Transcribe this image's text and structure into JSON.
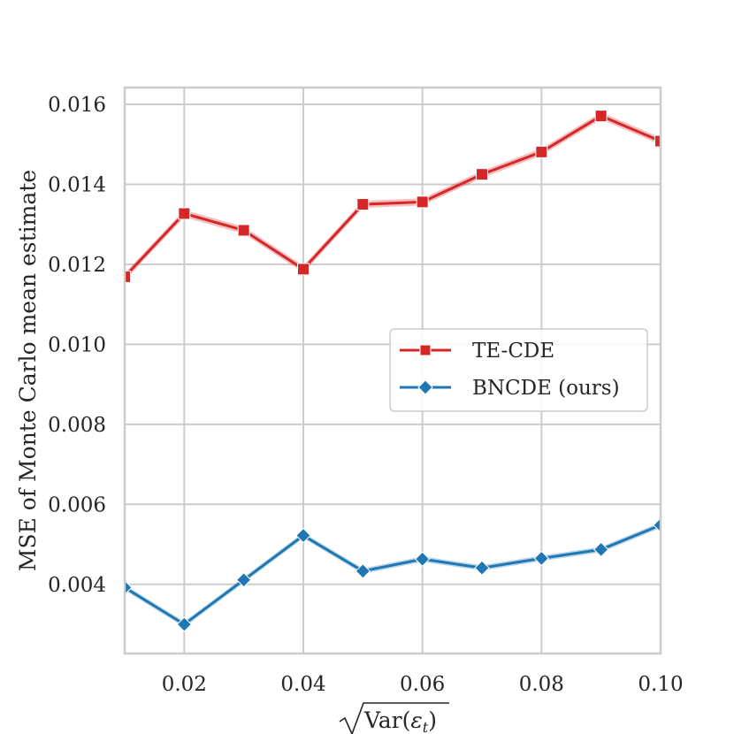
{
  "chart_data": {
    "type": "line",
    "title": "",
    "xlabel": "√Var(εt)",
    "ylabel": "MSE of Monte Carlo mean estimate",
    "xlim": [
      0.01,
      0.1
    ],
    "ylim": [
      0.00227,
      0.01642
    ],
    "grid": true,
    "legend_position": "center-right",
    "x_ticks": [
      0.02,
      0.04,
      0.06,
      0.08,
      0.1
    ],
    "x_tick_labels": [
      "0.02",
      "0.04",
      "0.06",
      "0.08",
      "0.10"
    ],
    "y_ticks": [
      0.004,
      0.006,
      0.008,
      0.01,
      0.012,
      0.014,
      0.016
    ],
    "y_tick_labels": [
      "0.004",
      "0.006",
      "0.008",
      "0.010",
      "0.012",
      "0.014",
      "0.016"
    ],
    "x": [
      0.01,
      0.02,
      0.03,
      0.04,
      0.05,
      0.06,
      0.07,
      0.08,
      0.09,
      0.1
    ],
    "series": [
      {
        "name": "TE-CDE",
        "color": "#d62728",
        "marker": "square",
        "values": [
          0.01169,
          0.01327,
          0.01285,
          0.01188,
          0.0135,
          0.01356,
          0.01425,
          0.01481,
          0.01571,
          0.01508
        ],
        "ci_half_width": 9e-05
      },
      {
        "name": "BNCDE (ours)",
        "color": "#1f77b4",
        "marker": "diamond",
        "values": [
          0.00392,
          0.003,
          0.00411,
          0.00522,
          0.00433,
          0.00463,
          0.00441,
          0.00465,
          0.00487,
          0.00548
        ],
        "ci_half_width": 7e-05
      }
    ]
  }
}
